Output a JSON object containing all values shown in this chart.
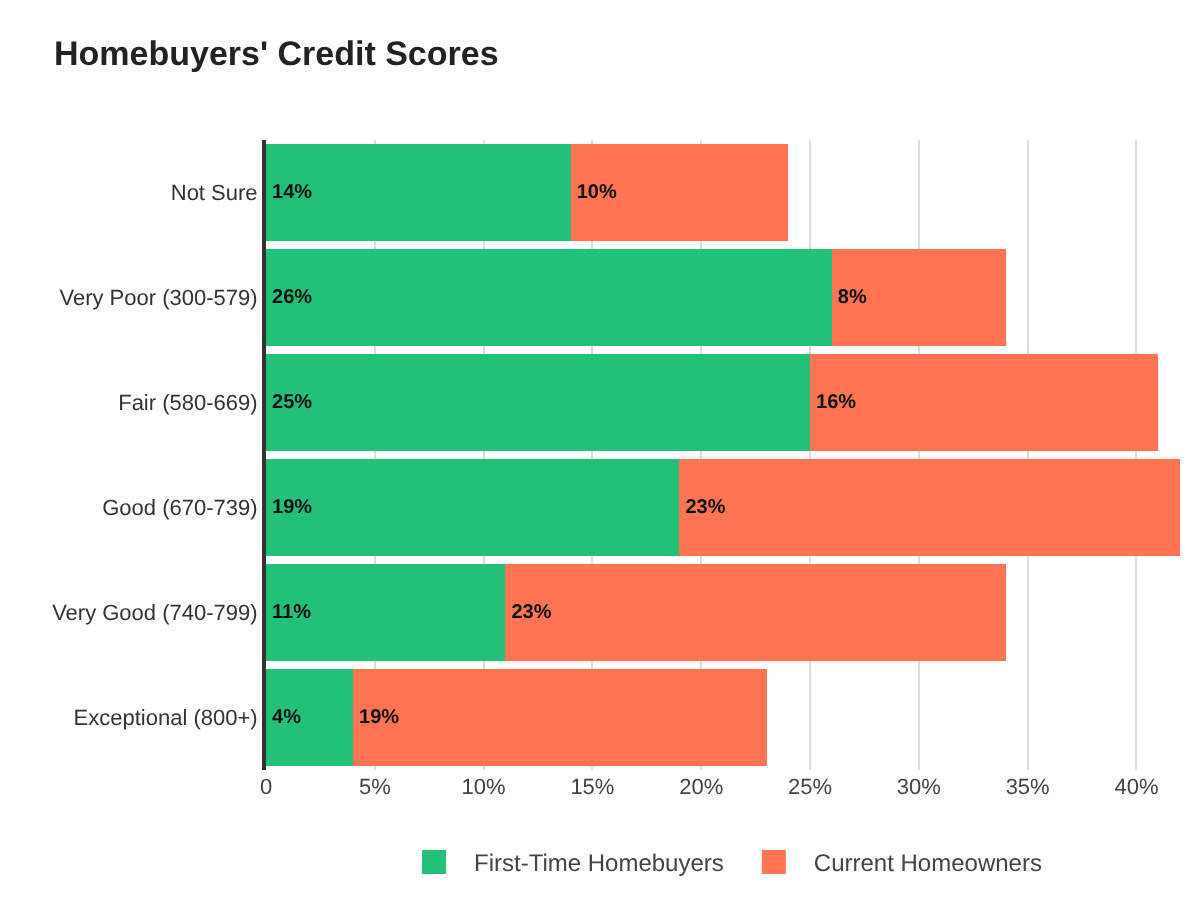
{
  "chart_data": {
    "type": "bar",
    "title": "Homebuyers' Credit Scores",
    "orientation": "horizontal",
    "stacked": true,
    "categories": [
      "Not Sure",
      "Very Poor (300-579)",
      "Fair (580-669)",
      "Good (670-739)",
      "Very Good (740-799)",
      "Exceptional (800+)"
    ],
    "series": [
      {
        "name": "First-Time Homebuyers",
        "color": "#22c079",
        "values": [
          14,
          26,
          25,
          19,
          11,
          4
        ],
        "value_labels": [
          "14%",
          "26%",
          "25%",
          "19%",
          "11%",
          "4%"
        ]
      },
      {
        "name": "Current Homeowners",
        "color": "#ff7452",
        "values": [
          10,
          8,
          16,
          23,
          23,
          19
        ],
        "value_labels": [
          "10%",
          "8%",
          "16%",
          "23%",
          "23%",
          "19%"
        ]
      }
    ],
    "xlim": [
      0,
      42
    ],
    "xticks": [
      0,
      {
        "value": 5,
        "label": "5%"
      },
      {
        "value": 10,
        "label": "10%"
      },
      {
        "value": 15,
        "label": "15%"
      },
      {
        "value": 20,
        "label": "20%"
      },
      {
        "value": 25,
        "label": "25%"
      },
      {
        "value": 30,
        "label": "30%"
      },
      {
        "value": 35,
        "label": "35%"
      },
      {
        "value": 40,
        "label": "40%"
      }
    ],
    "grid": "x",
    "legend": "bottom"
  }
}
